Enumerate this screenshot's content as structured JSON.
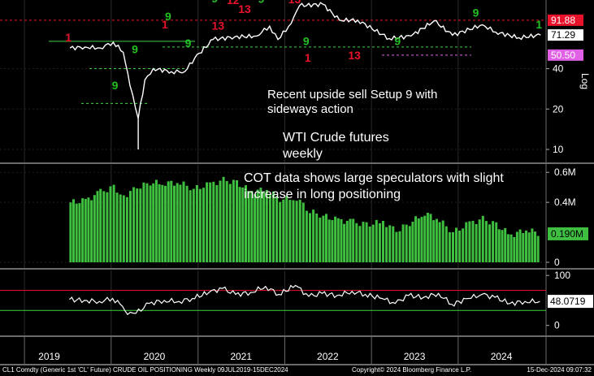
{
  "chart_data": [
    {
      "type": "line",
      "title": "WTI Crude futures weekly",
      "y_scale": "log",
      "ylim": [
        8,
        130
      ],
      "y_ticks": [
        "40",
        "20",
        "10"
      ],
      "y_axis_watermark": "Log",
      "x_ticks": [
        "2019",
        "2020",
        "2021",
        "2022",
        "2023",
        "2024"
      ],
      "grid": true,
      "series": [
        {
          "name": "CL1 Comdty",
          "color": "#ffffff",
          "x": [
            "2019-07-12",
            "2019-09-13",
            "2019-11-15",
            "2020-01-10",
            "2020-02-21",
            "2020-03-20",
            "2020-04-24",
            "2020-05-22",
            "2020-06-26",
            "2020-09-11",
            "2020-11-06",
            "2020-12-18",
            "2021-03-05",
            "2021-06-04",
            "2021-09-03",
            "2021-10-29",
            "2021-12-03",
            "2022-01-28",
            "2022-03-04",
            "2022-06-10",
            "2022-08-19",
            "2022-11-04",
            "2023-03-17",
            "2023-06-16",
            "2023-09-22",
            "2023-12-08",
            "2024-04-12",
            "2024-06-07",
            "2024-09-13",
            "2024-12-13"
          ],
          "values": [
            57,
            58,
            57,
            63,
            53,
            30,
            17,
            33,
            40,
            38,
            38,
            48,
            66,
            69,
            70,
            83,
            66,
            87,
            118,
            121,
            92,
            92,
            67,
            70,
            91,
            71,
            85,
            75,
            68,
            71.29
          ]
        }
      ],
      "price_badges": [
        {
          "label": "91.88",
          "color": "#e8132b",
          "value": 91.88
        },
        {
          "label": "71.29",
          "color": "#ffffff",
          "value": 71.29
        },
        {
          "label": "50.50",
          "color": "#e060e6",
          "value": 50.5
        }
      ],
      "td_counts": [
        {
          "label": "1",
          "color": "#e8132b",
          "x": "2019-07-05",
          "value": 64
        },
        {
          "label": "9",
          "color": "#22c022",
          "x": "2020-01-17",
          "value": 28
        },
        {
          "label": "9",
          "color": "#22c022",
          "x": "2020-04-10",
          "value": 52
        },
        {
          "label": "1",
          "color": "#e8132b",
          "x": "2020-08-14",
          "value": 80
        },
        {
          "label": "9",
          "color": "#22c022",
          "x": "2020-08-28",
          "value": 92
        },
        {
          "label": "9",
          "color": "#22c022",
          "x": "2020-11-20",
          "value": 58
        },
        {
          "label": "9",
          "color": "#22c022",
          "x": "2021-03-12",
          "value": 125
        },
        {
          "label": "13",
          "color": "#e8132b",
          "x": "2021-03-26",
          "value": 78
        },
        {
          "label": "12",
          "color": "#e8132b",
          "x": "2021-05-28",
          "value": 121
        },
        {
          "label": "13",
          "color": "#e8132b",
          "x": "2021-07-16",
          "value": 104
        },
        {
          "label": "9",
          "color": "#22c022",
          "x": "2021-09-24",
          "value": 124
        },
        {
          "label": "13",
          "color": "#e8132b",
          "x": "2022-02-11",
          "value": 123
        },
        {
          "label": "9",
          "color": "#22c022",
          "x": "2022-04-01",
          "value": 60
        },
        {
          "label": "1",
          "color": "#e8132b",
          "x": "2022-04-08",
          "value": 45
        },
        {
          "label": "13",
          "color": "#e8132b",
          "x": "2022-10-21",
          "value": 47
        },
        {
          "label": "9",
          "color": "#22c022",
          "x": "2023-04-21",
          "value": 60
        },
        {
          "label": "9",
          "color": "#22c022",
          "x": "2024-03-15",
          "value": 98
        },
        {
          "label": "1",
          "color": "#22c022",
          "x": "2024-12-06",
          "value": 80
        }
      ],
      "annotations": [
        "Recent upside sell Setup 9 with",
        "sideways action"
      ]
    },
    {
      "type": "bar",
      "title": "COT data shows large speculators with slight increase in long positioning",
      "ylim": [
        0,
        0.65
      ],
      "y_ticks": [
        "0.6M",
        "0.4M",
        "0"
      ],
      "color": "#3fbf3f",
      "current_label": "0.190M",
      "x": [
        "2019-07-09",
        "2019-09-10",
        "2019-11-12",
        "2020-01-07",
        "2020-02-18",
        "2020-04-14",
        "2020-06-09",
        "2020-08-11",
        "2020-10-13",
        "2020-12-08",
        "2021-02-16",
        "2021-04-13",
        "2021-06-08",
        "2021-08-10",
        "2021-10-12",
        "2021-12-07",
        "2022-02-15",
        "2022-04-12",
        "2022-06-07",
        "2022-08-09",
        "2022-10-11",
        "2022-12-06",
        "2023-02-14",
        "2023-04-11",
        "2023-06-06",
        "2023-08-08",
        "2023-10-10",
        "2023-12-05",
        "2024-02-13",
        "2024-04-09",
        "2024-06-04",
        "2024-08-06",
        "2024-10-08",
        "2024-12-10"
      ],
      "values": [
        0.4,
        0.41,
        0.47,
        0.5,
        0.44,
        0.5,
        0.53,
        0.53,
        0.53,
        0.49,
        0.52,
        0.55,
        0.53,
        0.47,
        0.49,
        0.42,
        0.43,
        0.34,
        0.31,
        0.28,
        0.27,
        0.25,
        0.27,
        0.21,
        0.26,
        0.33,
        0.28,
        0.2,
        0.26,
        0.29,
        0.25,
        0.18,
        0.22,
        0.19
      ]
    },
    {
      "type": "line",
      "ylim": [
        -20,
        110
      ],
      "y_ticks": [
        "100",
        "0"
      ],
      "upper_level": 70,
      "lower_level": 30,
      "current_label": "48.0719",
      "series": [
        {
          "name": "",
          "color": "#ffffff",
          "x": [
            "2019-07-09",
            "2019-09-10",
            "2019-11-12",
            "2020-01-07",
            "2020-02-18",
            "2020-03-10",
            "2020-04-14",
            "2020-06-09",
            "2020-08-11",
            "2020-10-13",
            "2020-12-08",
            "2021-02-16",
            "2021-04-13",
            "2021-06-08",
            "2021-08-10",
            "2021-10-12",
            "2021-12-07",
            "2022-02-15",
            "2022-04-12",
            "2022-06-07",
            "2022-08-09",
            "2022-10-11",
            "2022-12-06",
            "2023-02-14",
            "2023-04-11",
            "2023-06-06",
            "2023-08-08",
            "2023-10-10",
            "2023-12-05",
            "2024-02-13",
            "2024-04-09",
            "2024-06-04",
            "2024-08-06",
            "2024-10-08",
            "2024-12-10"
          ],
          "values": [
            52,
            50,
            48,
            54,
            38,
            22,
            24,
            44,
            50,
            48,
            54,
            66,
            74,
            62,
            66,
            78,
            62,
            80,
            58,
            64,
            60,
            68,
            62,
            54,
            44,
            60,
            56,
            64,
            42,
            54,
            62,
            56,
            44,
            48,
            48.07
          ]
        }
      ]
    }
  ],
  "footer": {
    "left": "CL1 Comdty (Generic 1st 'CL' Future) CRUDE OIL POSITIONING  Weekly 09JUL2019-15DEC2024",
    "center": "Copyright© 2024 Bloomberg Finance L.P.",
    "right": "15-Dec-2024 09:07:32"
  },
  "colors": {
    "background": "#000000",
    "price": "#ffffff",
    "bars": "#3fbf3f",
    "sell_count": "#e8132b",
    "buy_count": "#22c022",
    "support": "#3fd13f",
    "resistance": "#e8132b",
    "tdst": "#e060e6"
  }
}
